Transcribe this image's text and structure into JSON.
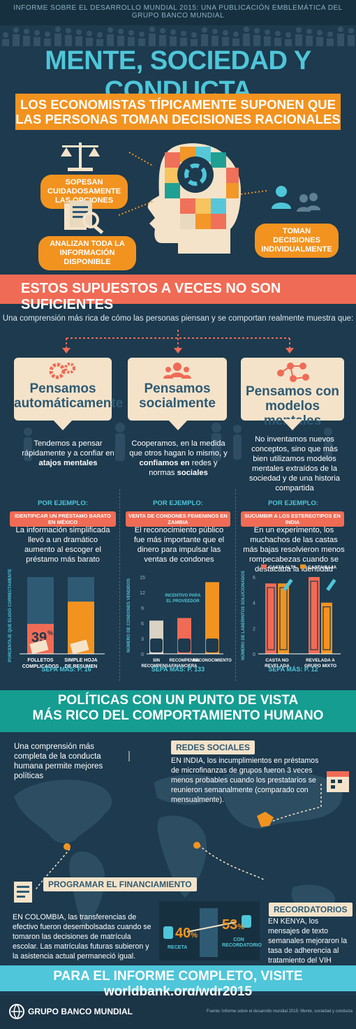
{
  "header": {
    "top_text": "INFORME SOBRE EL DESARROLLO MUNDIAL 2015: UNA PUBLICACIÓN EMBLEMÁTICA DEL GRUPO BANCO MUNDIAL",
    "title": "MENTE, SOCIEDAD Y CONDUCTA"
  },
  "section1": {
    "banner_line1": "LOS ECONOMISTAS TÍPICAMENTE SUPONEN QUE",
    "banner_line2": "LAS PERSONAS TOMAN DECISIONES RACIONALES",
    "tag1": "SOPESAN CUIDADOSAMENTE LAS OPCIONES",
    "tag2": "ANALIZAN TODA LA INFORMACIÓN DISPONIBLE",
    "tag3": "TOMAN DECISIONES INDIVIDUALMENTE"
  },
  "section2": {
    "banner": "ESTOS SUPUESTOS A VECES NO SON SUFICIENTES",
    "intro": "Una comprensión más rica de cómo las personas piensan y se comportan realmente muestra que:",
    "columns": [
      {
        "title1": "Pensamos",
        "title2": "automáticamente",
        "desc_a": "Tendemos a pensar rápidamente y a confiar en ",
        "desc_b": "atajos mentales",
        "por": "POR EJEMPLO:",
        "pill": "IDENTIFICAR UN PRÉSTAMO BARATO EN MÉXICO",
        "example": "La información simplificada llevó a un dramático aumento al escoger el préstamo más barato",
        "sepa": "SEPA MÁS: P. 16"
      },
      {
        "title1": "Pensamos",
        "title2": "socialmente",
        "desc_a": "Cooperamos, en la medida que otros hagan lo mismo, y ",
        "desc_b": "confiamos en",
        "desc_c": " redes y normas ",
        "desc_d": "sociales",
        "por": "POR EJEMPLO:",
        "pill": "VENTA DE CONDONES FEMENINOS EN ZAMBIA",
        "example": "El reconocimiento público fue más importante que el dinero para impulsar las ventas de condones",
        "sepa": "SEPA MÁS: P. 133"
      },
      {
        "title1": "Pensamos con",
        "title2": "modelos mentales",
        "desc_a": "No inventamos nuevos conceptos, sino que más bien utilizamos modelos mentales extraídos de la sociedad y de una historia compartida",
        "por": "POR EJEMPLO:",
        "pill": "SUCUMBIR A LOS ESTEREOTIPOS EN INDIA",
        "example": "En un experimento, los muchachos de las castas más bajas resolvieron menos rompecabezas cuando se destacaba la identidad",
        "sepa": "SEPA MÁS: P. 12"
      }
    ]
  },
  "chart_data": [
    {
      "type": "bar",
      "ylabel": "PORCENTAJE QUE ELIGIÓ CORRECTAMENTE",
      "categories": [
        "FOLLETOS COMPLICADOS",
        "SIMPLE HOJA DE RESUMEN"
      ],
      "values": [
        39,
        68
      ],
      "ylim": [
        0,
        100
      ],
      "colors": [
        "#f06b55",
        "#f29320"
      ]
    },
    {
      "type": "bar",
      "ylabel": "NÚMERO DE CONDONES VENDIDOS",
      "categories": [
        "SIN RECOMPENSA",
        "RECOMPENSA FINANCIERA",
        "RECONOCIMIENTO"
      ],
      "values": [
        6.5,
        7,
        14
      ],
      "ylim": [
        0,
        15
      ],
      "yticks": [
        0,
        3,
        6,
        9,
        12,
        15
      ],
      "annotation": "INCENTIVO PARA EL PROVEEDOR",
      "colors": [
        "#d9d2c5",
        "#f06b55",
        "#f29320"
      ]
    },
    {
      "type": "bar",
      "ylabel": "NÚMERO DE LABERINTOS SOLUCIONADOS",
      "categories": [
        "CASTA NO REVELADA",
        "REVELADA A GRUPO MIXTO"
      ],
      "series": [
        {
          "name": "CASTA ALTA",
          "values": [
            5.5,
            6
          ]
        },
        {
          "name": "CASTA BAJA",
          "values": [
            5.5,
            4
          ]
        }
      ],
      "ylim": [
        0,
        6
      ],
      "yticks": [
        0,
        2,
        4,
        6
      ],
      "colors": [
        "#f06b55",
        "#f29320"
      ]
    }
  ],
  "section3": {
    "title_line1": "POLÍTICAS CON UN PUNTO DE VISTA",
    "title_line2": "MÁS RICO DEL COMPORTAMIENTO HUMANO",
    "intro": "Una comprensión más completa de la conducta humana permite mejores políticas",
    "redes_label": "REDES SOCIALES",
    "redes_text": "EN INDIA, los incumplimientos en préstamos de microfinanzas de grupos fueron 3 veces menos probables cuando los prestatarios se reunieron semanalmente (comparado con mensualmente).",
    "prog_label": "PROGRAMAR EL FINANCIAMIENTO",
    "prog_text": "EN COLOMBIA, las transferencias de efectivo fueron desembolsadas cuando se tomaron las decisiones de matrícula escolar. Las matrículas futuras subieron y la asistencia actual permaneció igual.",
    "recor_label": "RECORDATORIOS",
    "recor_text": "EN KENYA, los mensajes de texto semanales mejoraron la tasa de adherencia al tratamiento del VIH desde 40 % hasta 53 %",
    "stat1_value": "40",
    "stat1_unit": "%",
    "stat1_label": "RECETA",
    "stat2_value": "53",
    "stat2_unit": "%",
    "stat2_label": "CON RECORDATORIO"
  },
  "footer": {
    "cta": "PARA EL INFORME COMPLETO, VISITE worldbank.org/wdr2015",
    "org": "GRUPO BANCO MUNDIAL",
    "source": "Fuente: Informe sobre el desarrollo mundial 2015: Mente, sociedad y conducta"
  }
}
